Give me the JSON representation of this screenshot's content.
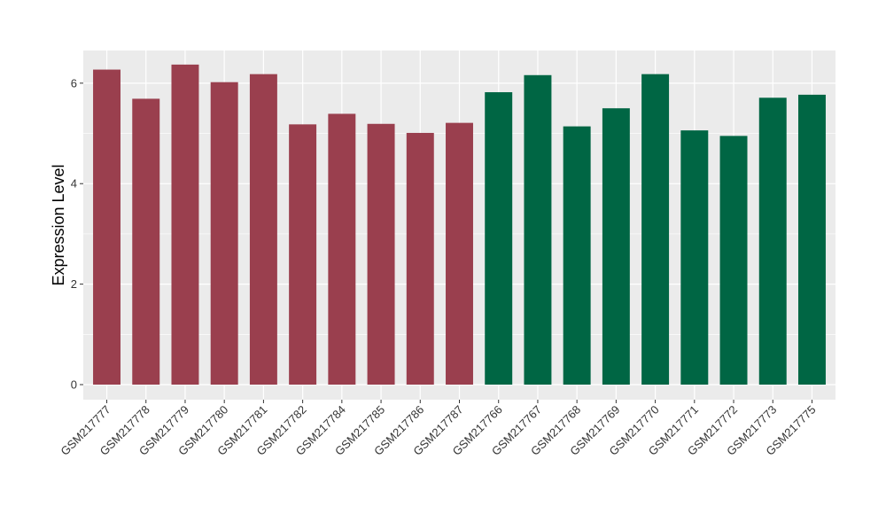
{
  "chart_data": {
    "type": "bar",
    "title": "",
    "xlabel": "",
    "ylabel": "Expression Level",
    "ylim": [
      -0.3,
      6.65
    ],
    "yticks": [
      0,
      2,
      4,
      6
    ],
    "grid": true,
    "legend": "none",
    "categories": [
      "GSM217777",
      "GSM217778",
      "GSM217779",
      "GSM217780",
      "GSM217781",
      "GSM217782",
      "GSM217784",
      "GSM217785",
      "GSM217786",
      "GSM217787",
      "GSM217766",
      "GSM217767",
      "GSM217768",
      "GSM217769",
      "GSM217770",
      "GSM217771",
      "GSM217772",
      "GSM217773",
      "GSM217775"
    ],
    "values": [
      6.27,
      5.69,
      6.37,
      6.02,
      6.18,
      5.18,
      5.39,
      5.19,
      5.01,
      5.21,
      5.82,
      6.16,
      5.14,
      5.5,
      6.18,
      5.06,
      4.95,
      5.71,
      5.77
    ],
    "bar_colors": [
      "#9a3f4e",
      "#9a3f4e",
      "#9a3f4e",
      "#9a3f4e",
      "#9a3f4e",
      "#9a3f4e",
      "#9a3f4e",
      "#9a3f4e",
      "#9a3f4e",
      "#9a3f4e",
      "#006644",
      "#006644",
      "#006644",
      "#006644",
      "#006644",
      "#006644",
      "#006644",
      "#006644",
      "#006644"
    ]
  },
  "colors": {
    "panel_background": "#ebebeb",
    "gridline": "#ffffff",
    "axis_tick": "#333333"
  }
}
